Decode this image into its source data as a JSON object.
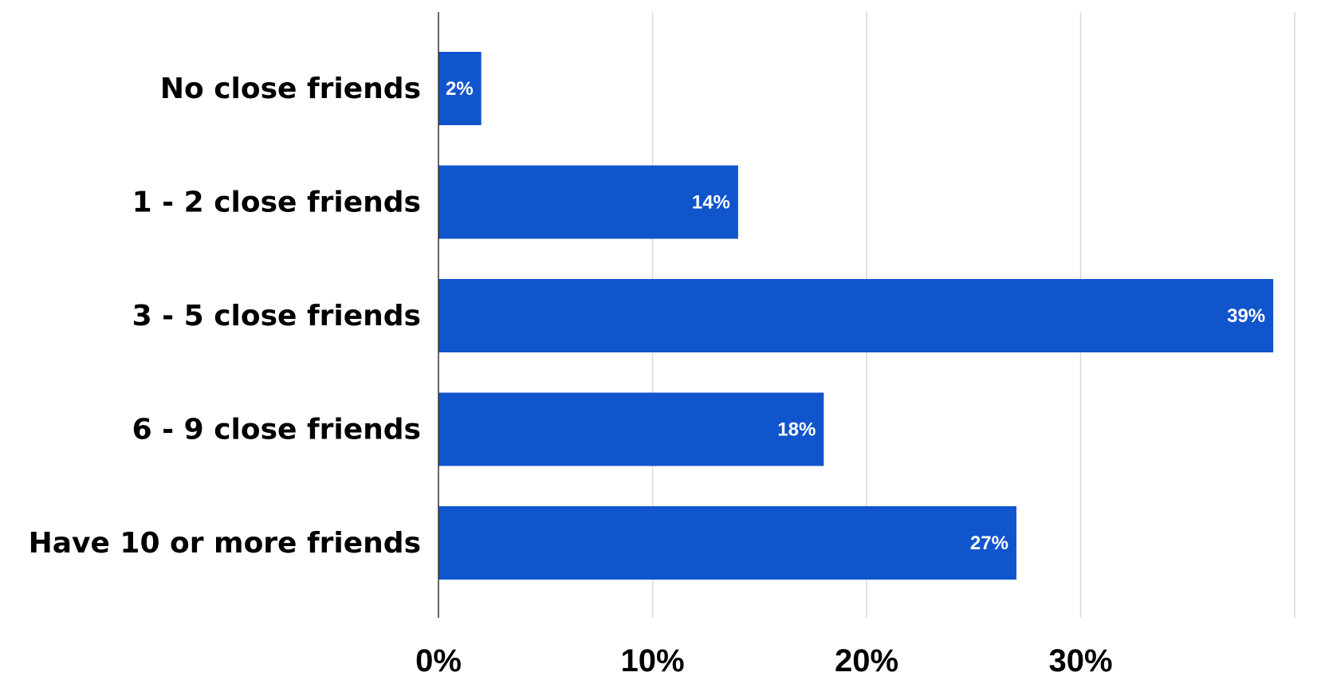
{
  "chart_data": {
    "type": "bar",
    "orientation": "horizontal",
    "categories": [
      "No close friends",
      "1 - 2 close friends",
      "3 - 5 close friends",
      "6 - 9 close friends",
      "Have 10 or more friends"
    ],
    "values": [
      2,
      14,
      39,
      18,
      27
    ],
    "data_labels": [
      "2%",
      "14%",
      "39%",
      "18%",
      "27%"
    ],
    "x_ticks": [
      {
        "value": 0,
        "label": "0%"
      },
      {
        "value": 10,
        "label": "10%"
      },
      {
        "value": 20,
        "label": "20%"
      },
      {
        "value": 30,
        "label": "30%"
      },
      {
        "value": 40,
        "label": ""
      }
    ],
    "xlim": [
      0,
      40
    ],
    "title": "",
    "xlabel": "",
    "ylabel": "",
    "grid": "vertical",
    "legend": "none",
    "bar_color": "#1155CC",
    "grid_color": "#D9D9D9",
    "axis_color": "#333333"
  }
}
